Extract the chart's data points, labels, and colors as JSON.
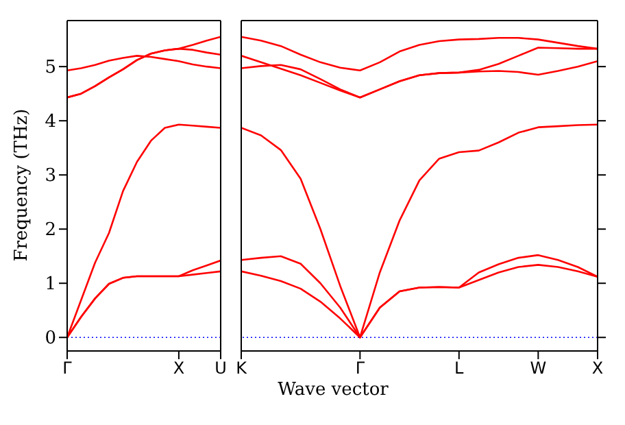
{
  "chart_data": [
    {
      "type": "line",
      "ylabel": "Frequency (THz)",
      "categories": [
        "Γ",
        null,
        null,
        null,
        null,
        null,
        null,
        null,
        "X",
        null,
        null,
        "U"
      ],
      "ylim": [
        -0.25,
        5.85
      ],
      "yticks": [
        0,
        1,
        2,
        3,
        4,
        5
      ],
      "legend": false,
      "marker": "none",
      "line_style": "solid",
      "ref_lines": [
        {
          "axis": "y",
          "value": 0,
          "label": null,
          "color": "#0000ff",
          "line_style": "dotted"
        }
      ],
      "series": [
        {
          "color": "#ff0000",
          "values": [
            0,
            0.38,
            0.72,
            0.99,
            1.1,
            1.13,
            1.13,
            1.13,
            1.13,
            1.16,
            1.19,
            1.22
          ]
        },
        {
          "color": "#ff0000",
          "values": [
            0,
            0.38,
            0.72,
            0.99,
            1.1,
            1.13,
            1.13,
            1.13,
            1.13,
            1.24,
            1.33,
            1.42
          ]
        },
        {
          "color": "#ff0000",
          "values": [
            0,
            0.69,
            1.38,
            1.93,
            2.7,
            3.24,
            3.63,
            3.87,
            3.93,
            3.91,
            3.89,
            3.87
          ]
        },
        {
          "color": "#ff0000",
          "values": [
            4.93,
            4.97,
            5.03,
            5.11,
            5.16,
            5.2,
            5.18,
            5.14,
            5.1,
            5.04,
            5.0,
            4.97
          ]
        },
        {
          "color": "#ff0000",
          "values": [
            4.43,
            4.5,
            4.64,
            4.8,
            4.95,
            5.12,
            5.24,
            5.3,
            5.33,
            5.4,
            5.48,
            5.55
          ]
        },
        {
          "color": "#ff0000",
          "values": [
            4.43,
            4.5,
            4.64,
            4.8,
            4.95,
            5.12,
            5.24,
            5.3,
            5.33,
            5.31,
            5.26,
            5.22
          ]
        }
      ]
    },
    {
      "type": "line",
      "xlabel": "Wave vector",
      "categories": [
        "K",
        null,
        null,
        null,
        null,
        null,
        "Γ",
        null,
        null,
        null,
        null,
        "L",
        null,
        null,
        null,
        "W",
        null,
        null,
        "X"
      ],
      "ylim": [
        -0.25,
        5.85
      ],
      "yticks": [
        0,
        1,
        2,
        3,
        4,
        5
      ],
      "tick_labels": "x",
      "legend": false,
      "marker": "none",
      "line_style": "solid",
      "ref_lines": [
        {
          "axis": "y",
          "value": 0,
          "label": null,
          "color": "#0000ff",
          "line_style": "dotted"
        }
      ],
      "series": [
        {
          "color": "#ff0000",
          "values": [
            5.55,
            5.48,
            5.38,
            5.22,
            5.08,
            4.98,
            4.93,
            5.08,
            5.28,
            5.4,
            5.47,
            5.5,
            5.51,
            5.53,
            5.53,
            5.5,
            5.44,
            5.38,
            5.33
          ]
        },
        {
          "color": "#ff0000",
          "values": [
            5.2,
            5.08,
            4.96,
            4.84,
            4.7,
            4.56,
            4.43,
            4.58,
            4.73,
            4.84,
            4.88,
            4.89,
            4.94,
            5.05,
            5.2,
            5.35,
            5.34,
            5.33,
            5.33
          ]
        },
        {
          "color": "#ff0000",
          "values": [
            4.97,
            5.01,
            5.03,
            4.95,
            4.77,
            4.58,
            4.43,
            4.58,
            4.73,
            4.84,
            4.88,
            4.89,
            4.91,
            4.92,
            4.9,
            4.85,
            4.92,
            5.0,
            5.1
          ]
        },
        {
          "color": "#ff0000",
          "values": [
            3.87,
            3.73,
            3.46,
            2.93,
            2.0,
            0.95,
            0,
            1.2,
            2.16,
            2.9,
            3.3,
            3.42,
            3.45,
            3.6,
            3.78,
            3.88,
            3.9,
            3.92,
            3.93
          ]
        },
        {
          "color": "#ff0000",
          "values": [
            1.43,
            1.47,
            1.5,
            1.36,
            1.0,
            0.55,
            0,
            0.55,
            0.85,
            0.92,
            0.93,
            0.92,
            1.2,
            1.35,
            1.47,
            1.52,
            1.43,
            1.3,
            1.12
          ]
        },
        {
          "color": "#ff0000",
          "values": [
            1.22,
            1.14,
            1.04,
            0.9,
            0.66,
            0.35,
            0,
            0.55,
            0.85,
            0.92,
            0.93,
            0.92,
            1.06,
            1.2,
            1.3,
            1.34,
            1.3,
            1.22,
            1.12
          ]
        }
      ]
    }
  ]
}
